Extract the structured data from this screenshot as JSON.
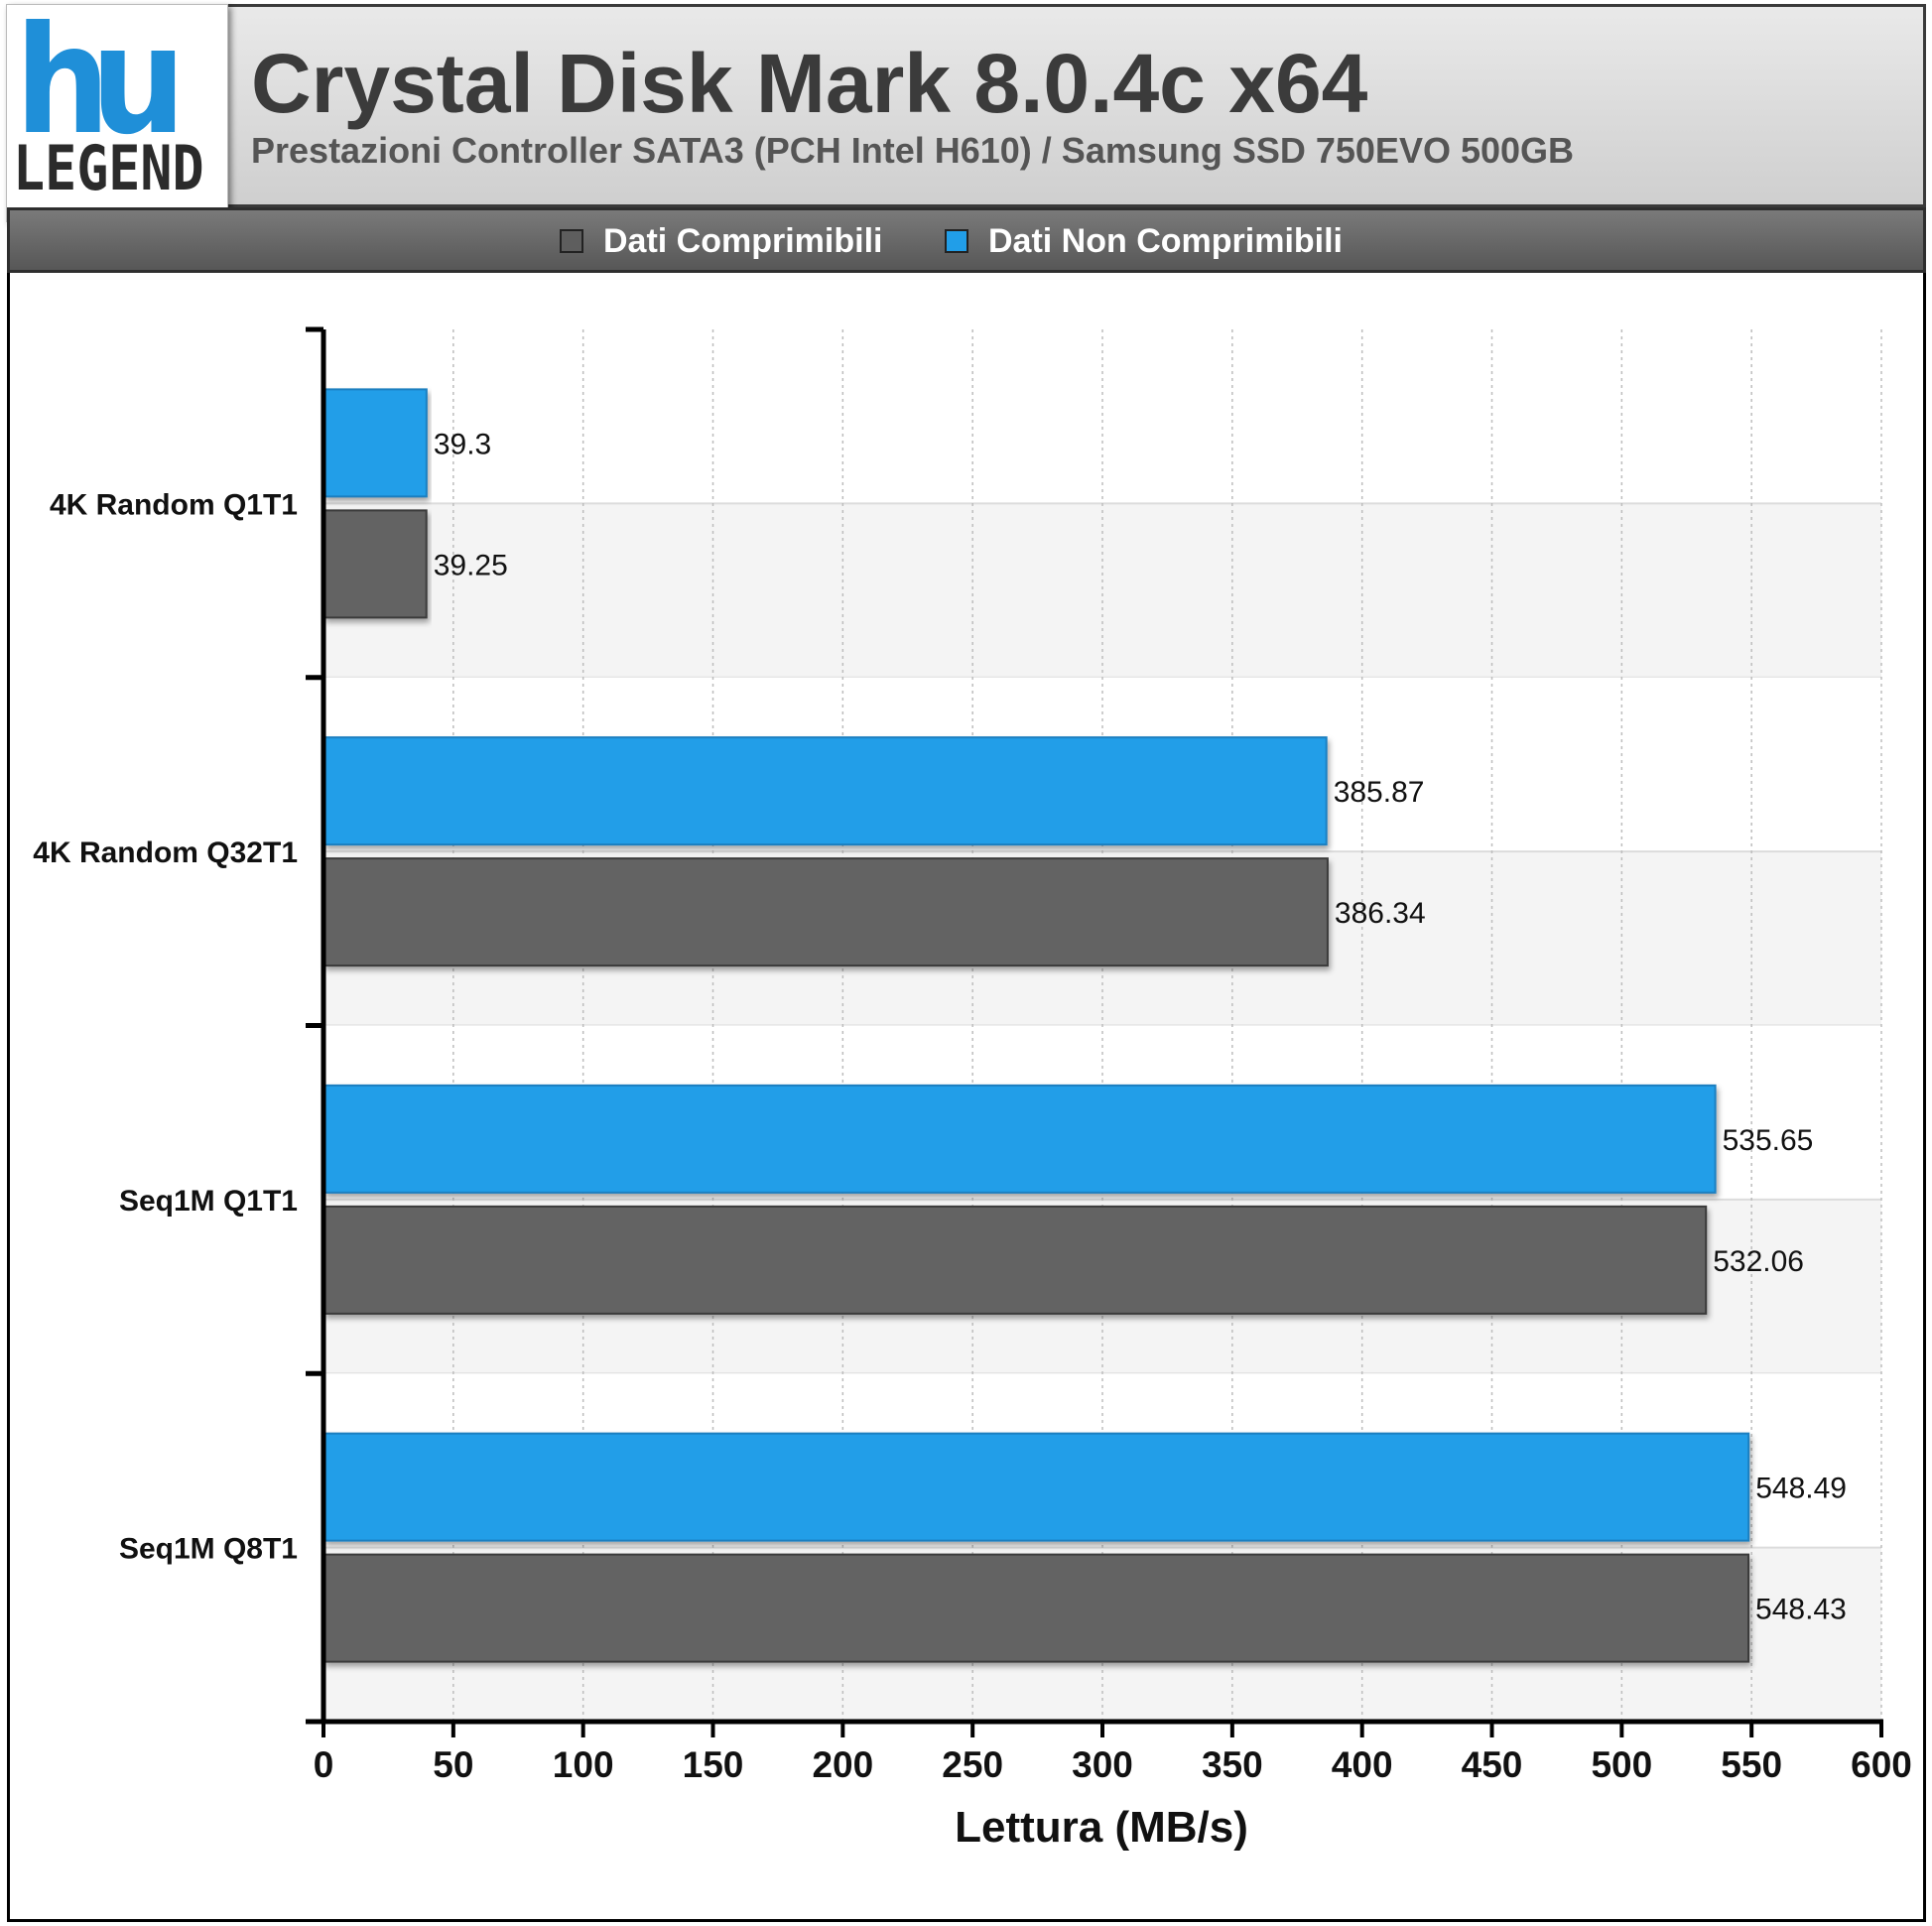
{
  "logo": {
    "mark": "hu",
    "word": "LEGEND"
  },
  "header": {
    "title": "Crystal Disk Mark 8.0.4c x64",
    "subtitle": "Prestazioni Controller SATA3 (PCH Intel H610) / Samsung SSD 750EVO 500GB"
  },
  "colors": {
    "compressible": "#636363",
    "incompressible": "#219ee8"
  },
  "chart_data": {
    "type": "bar",
    "orientation": "horizontal",
    "categories": [
      "4K Random Q1T1",
      "4K Random Q32T1",
      "Seq1M Q1T1",
      "Seq1M Q8T1"
    ],
    "series": [
      {
        "name": "Dati Non Comprimibili",
        "values": [
          39.3,
          385.87,
          535.65,
          548.49
        ]
      },
      {
        "name": "Dati Comprimibili",
        "values": [
          39.25,
          386.34,
          532.06,
          548.43
        ]
      }
    ],
    "value_labels": [
      [
        "39.3",
        "385.87",
        "535.65",
        "548.49"
      ],
      [
        "39.25",
        "386.34",
        "532.06",
        "548.43"
      ]
    ],
    "legend": [
      "Dati Comprimibili",
      "Dati Non Comprimibili"
    ],
    "xlabel": "Lettura (MB/s)",
    "xlim": [
      0,
      600
    ],
    "xticks": [
      0,
      50,
      100,
      150,
      200,
      250,
      300,
      350,
      400,
      450,
      500,
      550,
      600
    ],
    "grid": true,
    "legend_position": "top"
  }
}
